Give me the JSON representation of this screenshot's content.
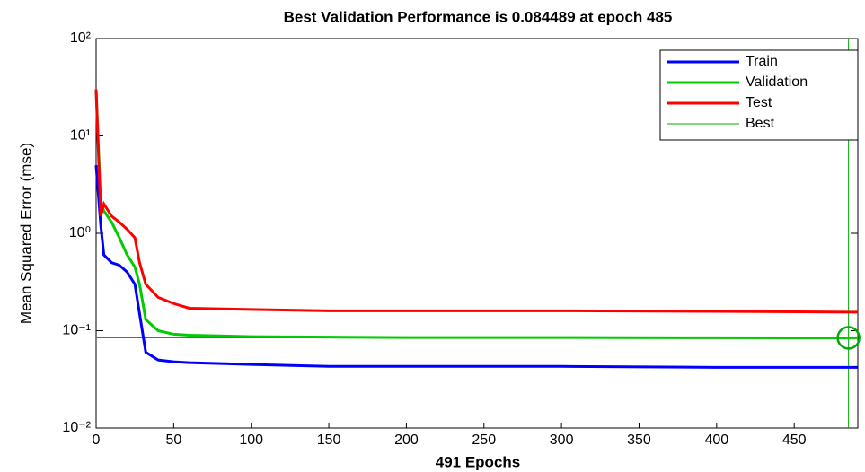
{
  "chart_data": {
    "type": "line",
    "title": "Best Validation Performance is 0.084489 at epoch 485",
    "x_label": "491 Epochs",
    "y_label": "Mean Squared Error  (mse)",
    "x": [
      0,
      3,
      5,
      10,
      15,
      20,
      25,
      28,
      32,
      40,
      50,
      60,
      100,
      150,
      200,
      300,
      400,
      485,
      491
    ],
    "series": [
      {
        "name": "Train",
        "color": "#0000ff",
        "values": [
          5,
          1.2,
          0.6,
          0.5,
          0.47,
          0.4,
          0.3,
          0.15,
          0.06,
          0.05,
          0.048,
          0.047,
          0.045,
          0.043,
          0.043,
          0.043,
          0.042,
          0.042,
          0.042
        ]
      },
      {
        "name": "Validation",
        "color": "#00cc00",
        "values": [
          30,
          2,
          1.7,
          1.3,
          0.9,
          0.6,
          0.45,
          0.3,
          0.13,
          0.1,
          0.092,
          0.09,
          0.087,
          0.086,
          0.085,
          0.085,
          0.0845,
          0.084489,
          0.0845
        ]
      },
      {
        "name": "Test",
        "color": "#ff0000",
        "values": [
          30,
          1.5,
          2,
          1.5,
          1.3,
          1.1,
          0.9,
          0.5,
          0.3,
          0.22,
          0.19,
          0.17,
          0.165,
          0.16,
          0.16,
          0.16,
          0.158,
          0.155,
          0.155
        ]
      }
    ],
    "best": {
      "name": "Best",
      "color": "#00aa00",
      "x": 485,
      "y": 0.084489
    },
    "xlim": [
      0,
      491
    ],
    "xticks": [
      0,
      50,
      100,
      150,
      200,
      250,
      300,
      350,
      400,
      450
    ],
    "ylim": [
      0.01,
      100
    ],
    "yticks": [
      {
        "value": 0.01,
        "label": "10⁻²"
      },
      {
        "value": 0.1,
        "label": "10⁻¹"
      },
      {
        "value": 1,
        "label": "10⁰"
      },
      {
        "value": 10,
        "label": "10¹"
      },
      {
        "value": 100,
        "label": "10²"
      }
    ],
    "y_scale": "log",
    "legend": "upper right"
  }
}
